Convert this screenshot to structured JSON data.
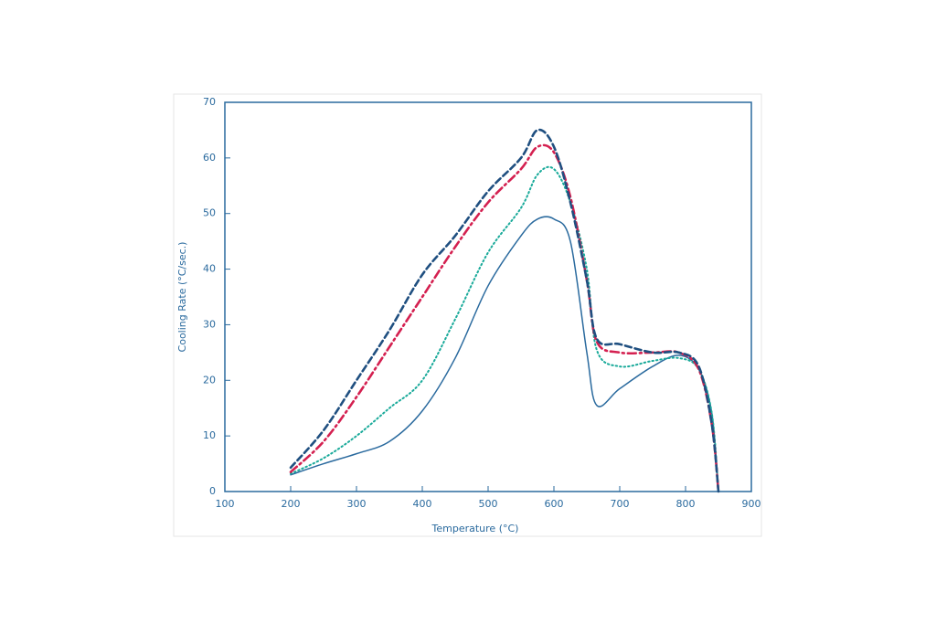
{
  "chart_data": {
    "type": "line",
    "x_label": "Temperature (°C)",
    "y_label": "Cooling Rate (°C/sec.)",
    "x": [
      200,
      250,
      300,
      350,
      400,
      450,
      500,
      550,
      575,
      600,
      625,
      650,
      665,
      700,
      750,
      790,
      820,
      840,
      850
    ],
    "series": [
      {
        "color": "#2a6a9e",
        "dash": "solid",
        "values": [
          3,
          5,
          6.8,
          9,
          14.5,
          24,
          37,
          46,
          49,
          49,
          45,
          25,
          15.5,
          18.5,
          22.5,
          24.5,
          22,
          14,
          0
        ]
      },
      {
        "color": "#1aaa9a",
        "dash": "dotted",
        "values": [
          3.2,
          6,
          10,
          15,
          20,
          31,
          43,
          51,
          57,
          58,
          52,
          40,
          25.5,
          22.5,
          23.5,
          24,
          22,
          14,
          0
        ]
      },
      {
        "color": "#d42050",
        "dash": "dashdot",
        "values": [
          3.5,
          9,
          17,
          26,
          35,
          44,
          52,
          58,
          62,
          61,
          53,
          38,
          27,
          25,
          25,
          25,
          22,
          12,
          0
        ]
      },
      {
        "color": "#1f4f80",
        "dash": "dashed",
        "values": [
          4.3,
          11,
          20,
          29,
          39,
          46,
          54,
          60,
          65,
          62,
          52,
          38,
          27.5,
          26.5,
          25,
          25,
          22.5,
          12,
          0
        ]
      }
    ],
    "xlim": [
      100,
      900
    ],
    "xticks": [
      100,
      200,
      300,
      400,
      500,
      600,
      700,
      800,
      900
    ],
    "ylim": [
      0,
      70
    ],
    "yticks": [
      0,
      10,
      20,
      30,
      40,
      50,
      60,
      70
    ]
  }
}
